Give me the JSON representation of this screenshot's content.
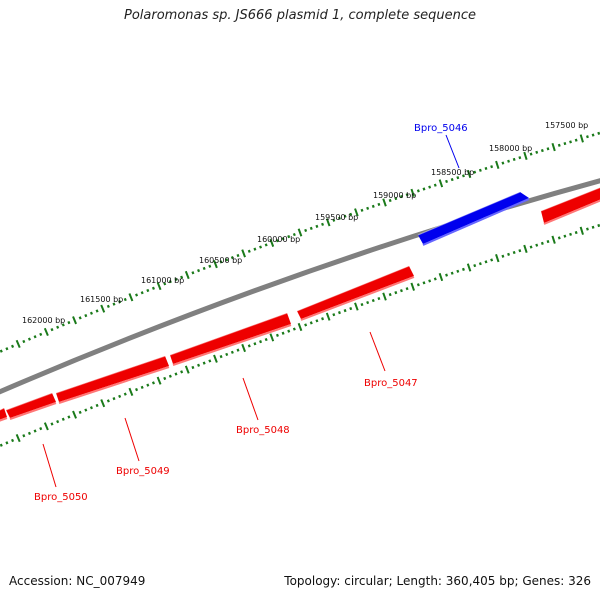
{
  "title": "Polaromonas sp. JS666 plasmid 1, complete sequence",
  "footer": {
    "accession": "Accession: NC_007949",
    "summary": "Topology: circular; Length: 360,405 bp; Genes: 326"
  },
  "colors": {
    "forward_gene": "#0000ee",
    "reverse_gene": "#ee0000",
    "backbone": "#808080",
    "ticks": "#1a7a1a"
  },
  "scale_labels": [
    "157500 bp",
    "158000 bp",
    "158500 bp",
    "159000 bp",
    "159500 bp",
    "160000 bp",
    "160500 bp",
    "161000 bp",
    "161500 bp",
    "162000 bp"
  ],
  "genes": [
    {
      "name": "Bpro_5046",
      "strand": "forward"
    },
    {
      "name": "Bpro_5047",
      "strand": "reverse"
    },
    {
      "name": "Bpro_5048",
      "strand": "reverse"
    },
    {
      "name": "Bpro_5049",
      "strand": "reverse"
    },
    {
      "name": "Bpro_5050",
      "strand": "reverse"
    }
  ]
}
